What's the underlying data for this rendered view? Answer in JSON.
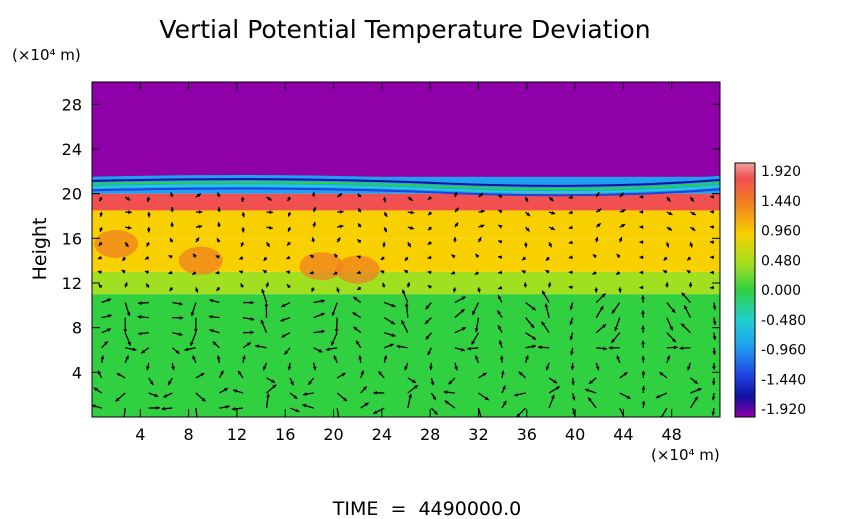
{
  "chart_data": {
    "type": "heatmap",
    "title": "Vertial Potential Temperature Deviation",
    "ylabel": "Height",
    "y_unit": "(×10⁴ m)",
    "x_unit": "(×10⁴ m)",
    "x_ticks": [
      "4",
      "8",
      "12",
      "16",
      "20",
      "24",
      "28",
      "32",
      "36",
      "40",
      "44",
      "48"
    ],
    "y_ticks": [
      "4",
      "8",
      "12",
      "16",
      "20",
      "24",
      "28"
    ],
    "xlim": [
      0,
      52
    ],
    "ylim": [
      0,
      30
    ],
    "grid": false,
    "colorbar": {
      "ticks": [
        "1.920",
        "1.440",
        "0.960",
        "0.480",
        "0.000",
        "-0.480",
        "-0.960",
        "-1.440",
        "-1.920"
      ],
      "range": [
        -1.92,
        1.92
      ]
    },
    "field_bands": [
      {
        "y_from": 0,
        "y_to": 11,
        "value": 0.05
      },
      {
        "y_from": 11,
        "y_to": 13,
        "value": 0.65
      },
      {
        "y_from": 13,
        "y_to": 16,
        "value": 1.0
      },
      {
        "y_from": 16,
        "y_to": 18.5,
        "value": 1.25
      },
      {
        "y_from": 18.5,
        "y_to": 20,
        "value": 1.75
      },
      {
        "y_from": 20,
        "y_to": 21.5,
        "value": -0.6
      },
      {
        "y_from": 21.5,
        "y_to": 30,
        "value": -1.92
      }
    ],
    "overlay": "wind vectors",
    "footer": "TIME  =  4490000.0"
  }
}
